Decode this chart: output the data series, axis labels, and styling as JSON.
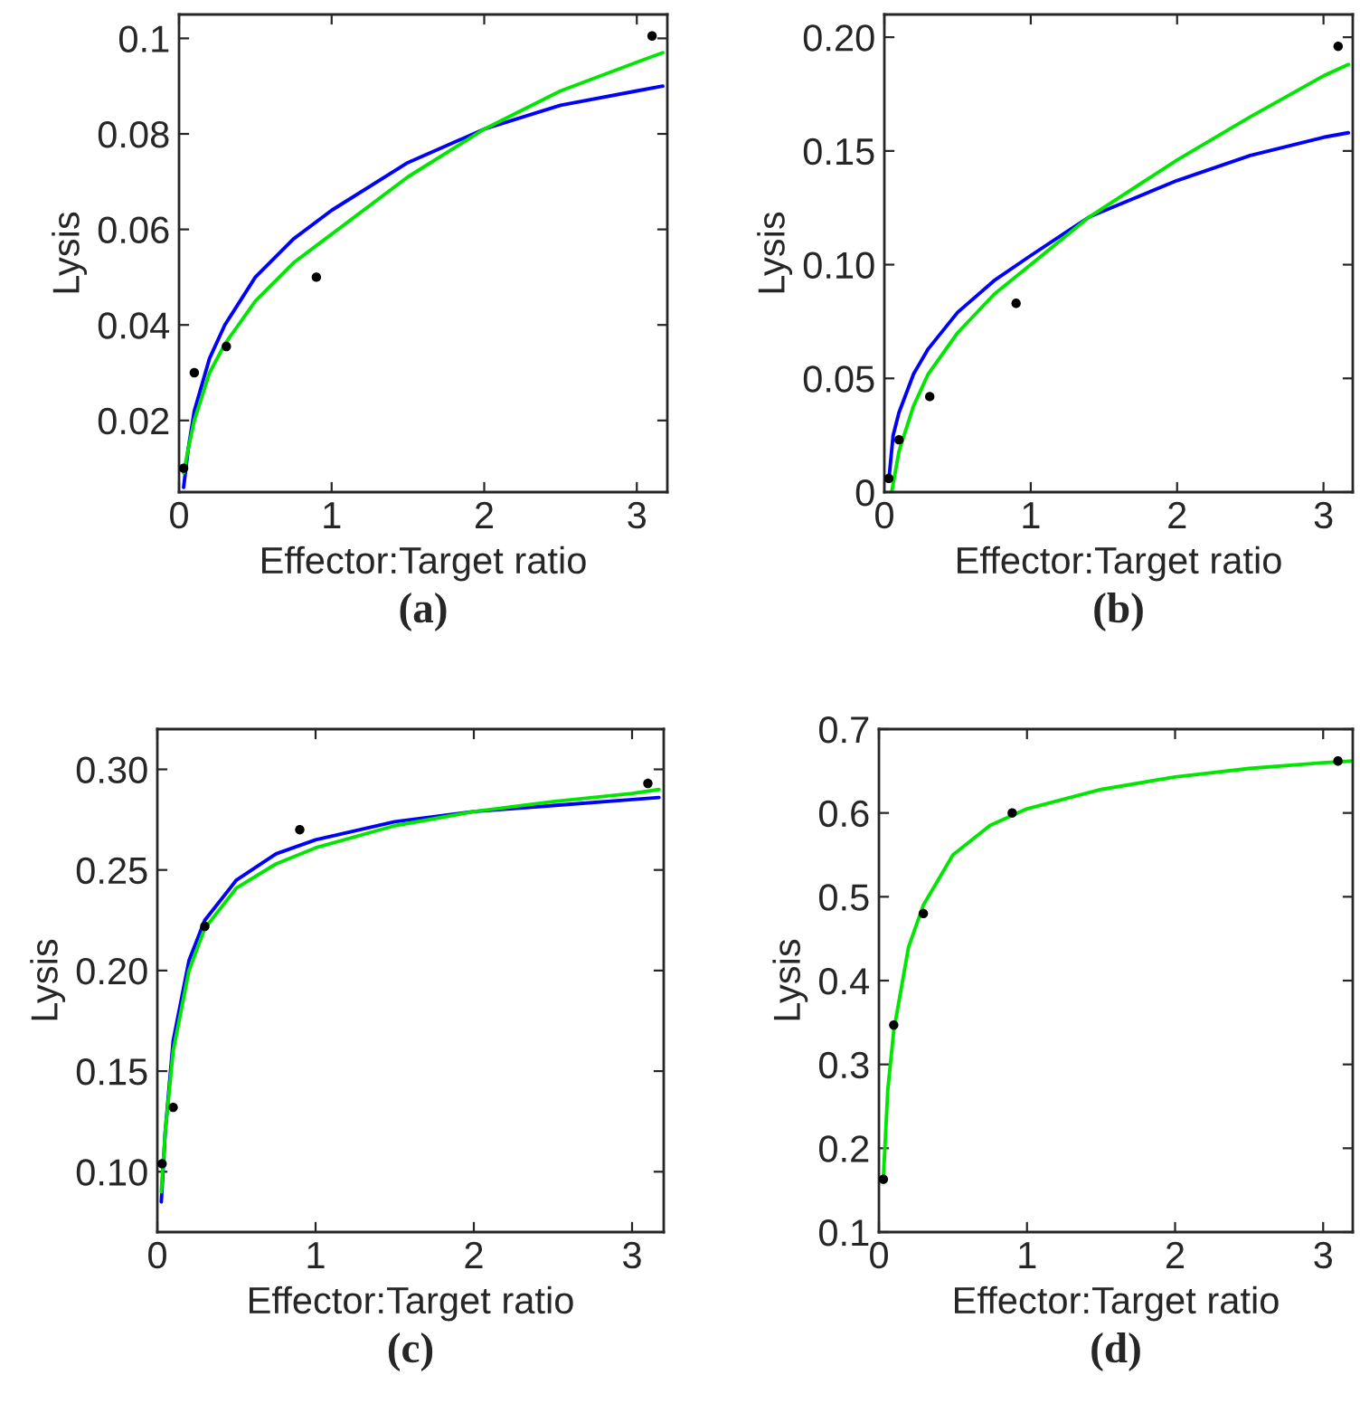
{
  "chart_data": [
    {
      "type": "scatter",
      "xlabel": "Effector:Target ratio",
      "ylabel": "Lysis",
      "annotations": [
        "(a)"
      ],
      "xlim": [
        0,
        3.2
      ],
      "ylim": [
        0.005,
        0.105
      ],
      "xticks": [
        0,
        1,
        2,
        3
      ],
      "yticks": [
        0.02,
        0.04,
        0.06,
        0.08,
        0.1
      ],
      "series": [
        {
          "marker": "circle",
          "color": "#000000",
          "x": [
            0.03,
            0.1,
            0.31,
            0.9,
            3.1
          ],
          "values": [
            0.01,
            0.03,
            0.0355,
            0.05,
            0.1005
          ]
        },
        {
          "type": "line",
          "color": "#0000ff",
          "x": [
            0.03,
            0.06,
            0.1,
            0.2,
            0.3,
            0.5,
            0.75,
            1.0,
            1.5,
            2.0,
            2.5,
            3.0,
            3.17
          ],
          "values": [
            0.006,
            0.014,
            0.022,
            0.033,
            0.04,
            0.05,
            0.058,
            0.064,
            0.074,
            0.081,
            0.086,
            0.089,
            0.09
          ]
        },
        {
          "type": "line",
          "color": "#00e600",
          "x": [
            0.03,
            0.06,
            0.1,
            0.2,
            0.3,
            0.5,
            0.75,
            1.0,
            1.5,
            2.0,
            2.5,
            3.0,
            3.17
          ],
          "values": [
            0.009,
            0.014,
            0.02,
            0.03,
            0.036,
            0.045,
            0.053,
            0.059,
            0.071,
            0.081,
            0.089,
            0.095,
            0.097
          ]
        }
      ]
    },
    {
      "type": "scatter",
      "xlabel": "Effector:Target ratio",
      "ylabel": "Lysis",
      "annotations": [
        "(b)"
      ],
      "xlim": [
        0,
        3.2
      ],
      "ylim": [
        0,
        0.21
      ],
      "xticks": [
        0,
        1,
        2,
        3
      ],
      "yticks": [
        0,
        0.05,
        {
          "value": 0.1,
          "label": "0.10"
        },
        0.15,
        {
          "value": 0.2,
          "label": "0.20"
        }
      ],
      "series": [
        {
          "marker": "circle",
          "color": "#000000",
          "x": [
            0.03,
            0.1,
            0.31,
            0.9,
            3.1
          ],
          "values": [
            0.006,
            0.023,
            0.042,
            0.083,
            0.196
          ]
        },
        {
          "type": "line",
          "color": "#0000ff",
          "x": [
            0.03,
            0.06,
            0.1,
            0.2,
            0.3,
            0.5,
            0.75,
            1.0,
            1.4,
            2.0,
            2.5,
            3.0,
            3.17
          ],
          "values": [
            0.005,
            0.025,
            0.035,
            0.052,
            0.063,
            0.079,
            0.093,
            0.104,
            0.121,
            0.137,
            0.148,
            0.156,
            0.158
          ]
        },
        {
          "type": "line",
          "color": "#00e600",
          "x": [
            0.05,
            0.1,
            0.2,
            0.3,
            0.5,
            0.75,
            1.0,
            1.4,
            2.0,
            2.5,
            3.0,
            3.17
          ],
          "values": [
            0.0,
            0.018,
            0.038,
            0.052,
            0.07,
            0.087,
            0.1,
            0.121,
            0.146,
            0.165,
            0.183,
            0.188
          ]
        }
      ]
    },
    {
      "type": "scatter",
      "xlabel": "Effector:Target ratio",
      "ylabel": "Lysis",
      "annotations": [
        "(c)"
      ],
      "xlim": [
        0,
        3.2
      ],
      "ylim": [
        0.07,
        0.32
      ],
      "xticks": [
        0,
        1,
        2,
        3
      ],
      "yticks": [
        {
          "value": 0.1,
          "label": "0.10"
        },
        0.15,
        {
          "value": 0.2,
          "label": "0.20"
        },
        0.25,
        {
          "value": 0.3,
          "label": "0.30"
        }
      ],
      "series": [
        {
          "marker": "circle",
          "color": "#000000",
          "x": [
            0.03,
            0.1,
            0.3,
            0.9,
            3.1
          ],
          "values": [
            0.104,
            0.132,
            0.222,
            0.27,
            0.293
          ]
        },
        {
          "type": "line",
          "color": "#0000ff",
          "x": [
            0.025,
            0.05,
            0.1,
            0.2,
            0.3,
            0.5,
            0.75,
            1.0,
            1.5,
            2.0,
            2.5,
            3.0,
            3.17
          ],
          "values": [
            0.085,
            0.12,
            0.165,
            0.205,
            0.225,
            0.245,
            0.258,
            0.265,
            0.274,
            0.279,
            0.282,
            0.285,
            0.286
          ]
        },
        {
          "type": "line",
          "color": "#00e600",
          "x": [
            0.025,
            0.05,
            0.1,
            0.2,
            0.3,
            0.5,
            0.75,
            1.0,
            1.5,
            2.0,
            2.5,
            3.0,
            3.17
          ],
          "values": [
            0.09,
            0.12,
            0.16,
            0.2,
            0.221,
            0.241,
            0.253,
            0.261,
            0.272,
            0.279,
            0.284,
            0.288,
            0.29
          ]
        }
      ]
    },
    {
      "type": "scatter",
      "xlabel": "Effector:Target ratio",
      "ylabel": "Lysis",
      "annotations": [
        "(d)"
      ],
      "xlim": [
        0,
        3.2
      ],
      "ylim": [
        0.1,
        0.7
      ],
      "xticks": [
        0,
        1,
        2,
        3
      ],
      "yticks": [
        0.1,
        0.2,
        0.3,
        0.4,
        0.5,
        0.6,
        0.7
      ],
      "series": [
        {
          "marker": "circle",
          "color": "#000000",
          "x": [
            0.03,
            0.1,
            0.3,
            0.9,
            3.1
          ],
          "values": [
            0.163,
            0.347,
            0.48,
            0.6,
            0.662
          ]
        },
        {
          "type": "line",
          "color": "#00e600",
          "x": [
            0.03,
            0.06,
            0.1,
            0.2,
            0.3,
            0.5,
            0.75,
            1.0,
            1.5,
            2.0,
            2.5,
            3.0,
            3.2
          ],
          "values": [
            0.165,
            0.27,
            0.34,
            0.44,
            0.49,
            0.55,
            0.585,
            0.605,
            0.628,
            0.643,
            0.653,
            0.66,
            0.662
          ]
        }
      ]
    }
  ]
}
